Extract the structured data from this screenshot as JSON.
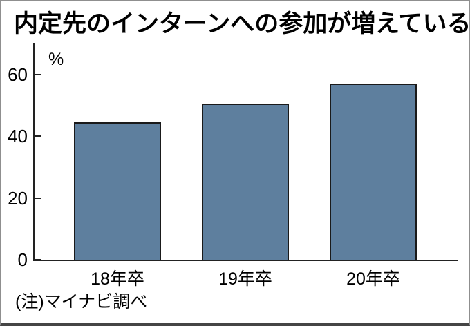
{
  "title": "内定先のインターンへの参加が増えている",
  "note": "(注)マイナビ調べ",
  "chart_data": {
    "type": "bar",
    "title": "内定先のインターンへの参加が増えている",
    "categories": [
      "18年卒",
      "19年卒",
      "20年卒"
    ],
    "values": [
      44.5,
      50.5,
      57
    ],
    "unit_label": "%",
    "xlabel": "",
    "ylabel": "%",
    "y_ticks": [
      0,
      20,
      40,
      60
    ],
    "ylim": [
      0,
      70.75
    ],
    "grid": false,
    "legend": "none",
    "bar_color": "#5e7f9e",
    "bar_border_color": "#1a1a1a",
    "axis_color": "#222222",
    "source_note": "(注)マイナビ調べ"
  }
}
